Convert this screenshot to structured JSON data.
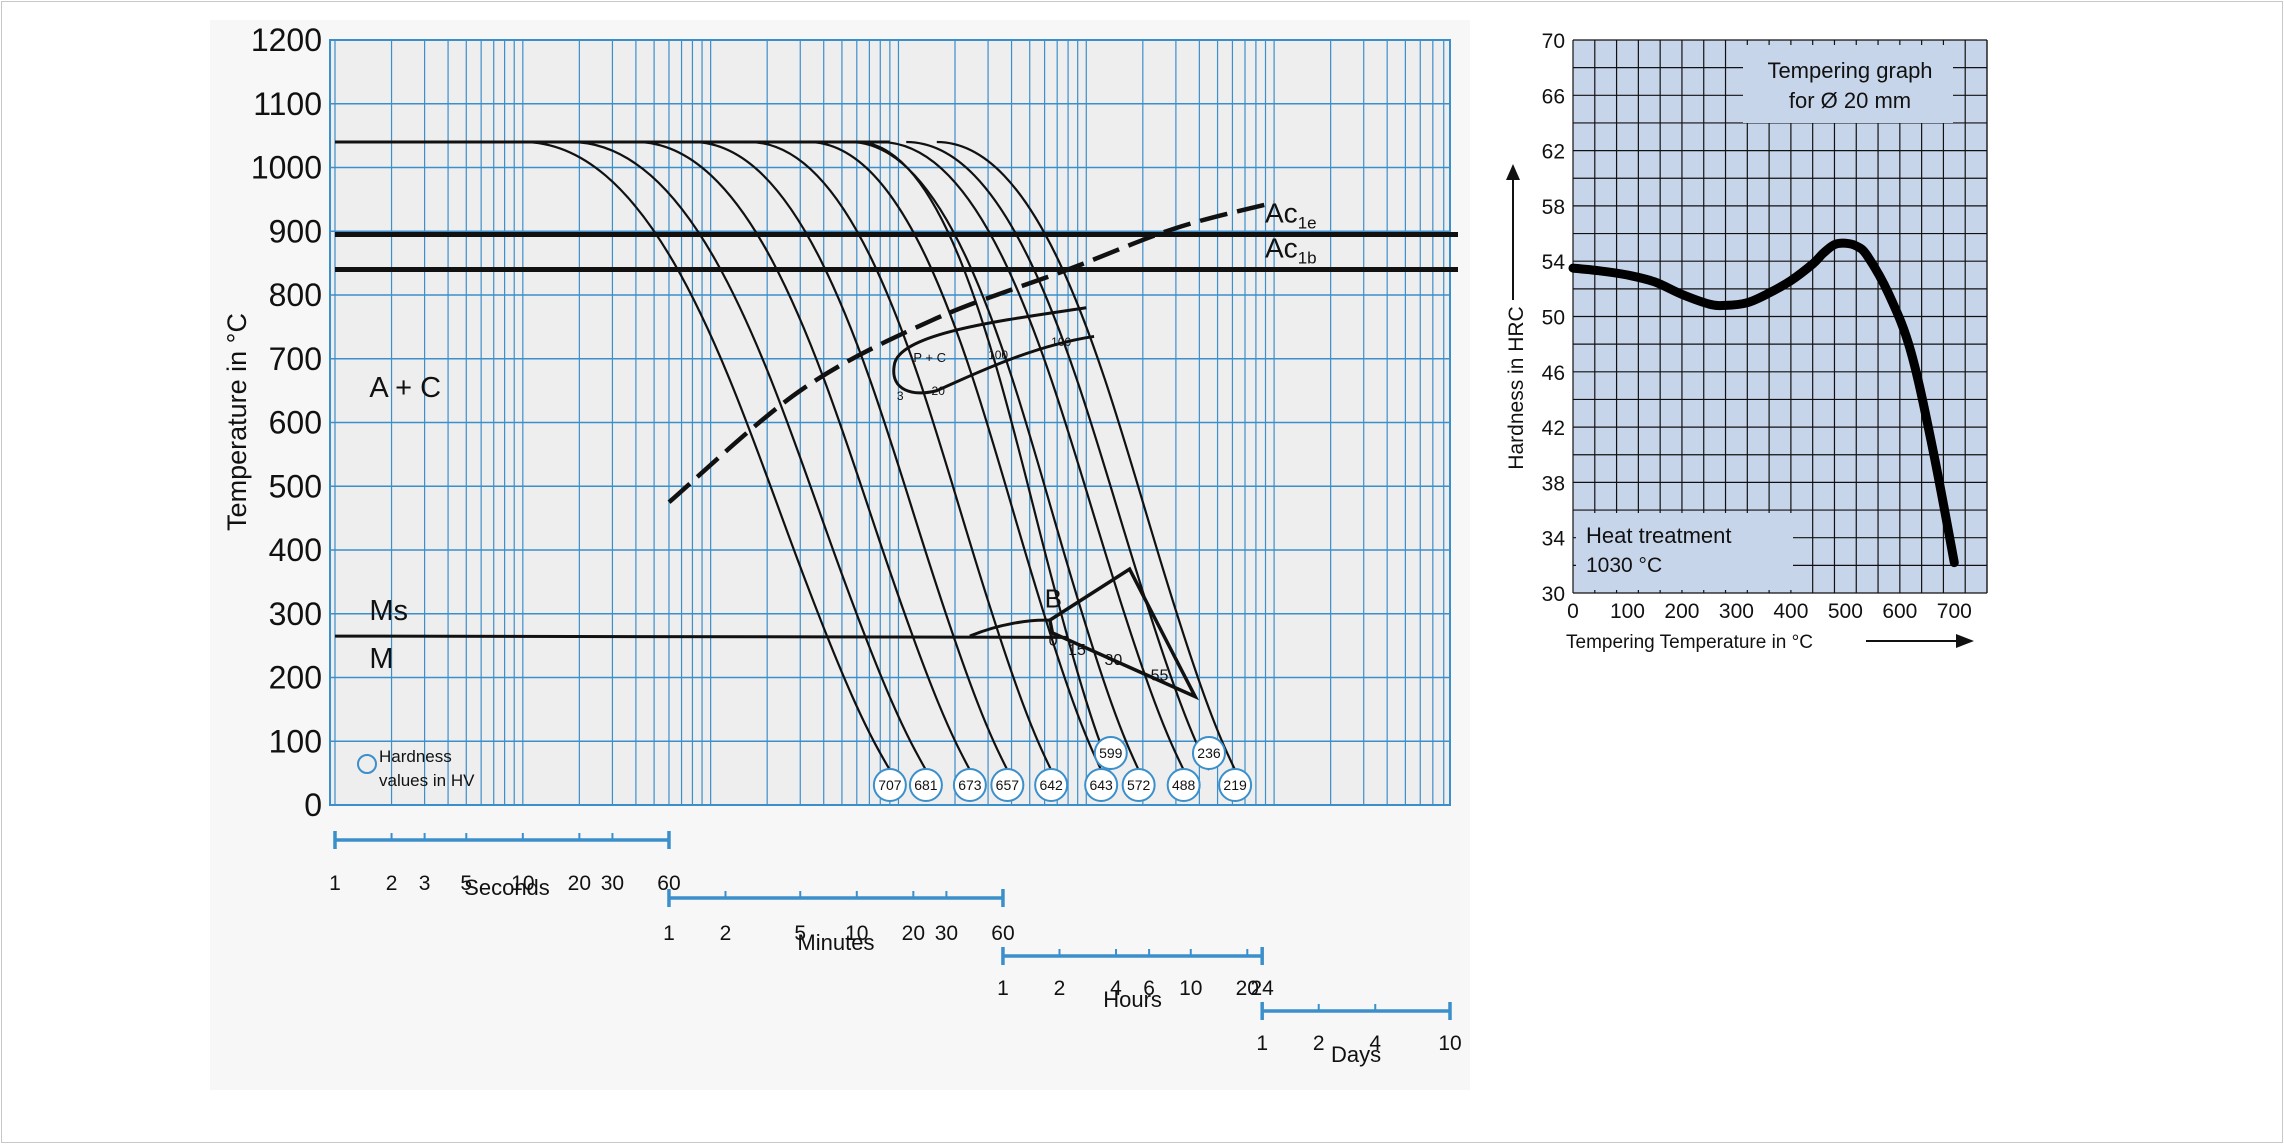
{
  "chart_data": [
    {
      "type": "line",
      "subtype": "continuous-cooling-transformation",
      "ylabel": "Temperature in °C",
      "ylim": [
        0,
        1200
      ],
      "yticks": [
        0,
        100,
        200,
        300,
        400,
        500,
        600,
        700,
        800,
        900,
        1000,
        1100,
        1200
      ],
      "x_scale": "log",
      "xlim_seconds": [
        1,
        864000
      ],
      "time_axes": [
        {
          "name": "Seconds",
          "ticks": [
            "1",
            "2",
            "3",
            "5",
            "10",
            "20",
            "30",
            "60"
          ],
          "values": [
            1,
            2,
            3,
            5,
            10,
            20,
            30,
            60
          ],
          "unit_seconds": 1
        },
        {
          "name": "Minutes",
          "ticks": [
            "1",
            "2",
            "5",
            "10",
            "20",
            "30",
            "60"
          ],
          "values": [
            1,
            2,
            5,
            10,
            20,
            30,
            60
          ],
          "unit_seconds": 60
        },
        {
          "name": "Hours",
          "ticks": [
            "1",
            "2",
            "4",
            "6",
            "10",
            "20",
            "24"
          ],
          "values": [
            1,
            2,
            4,
            6,
            10,
            20,
            24
          ],
          "unit_seconds": 3600
        },
        {
          "name": "Days",
          "ticks": [
            "1",
            "2",
            "4",
            "10"
          ],
          "values": [
            1,
            2,
            4,
            10
          ],
          "unit_seconds": 86400
        }
      ],
      "horizontal_lines": [
        {
          "label": "Ac",
          "sub": "1e",
          "y": 895
        },
        {
          "label": "Ac",
          "sub": "1b",
          "y": 840
        },
        {
          "label": "Ms",
          "y": 265
        }
      ],
      "region_labels": [
        {
          "text": "A + C",
          "t": 1.6,
          "y": 640
        },
        {
          "text": "Ms",
          "t": 1.6,
          "y": 290
        },
        {
          "text": "M",
          "t": 1.6,
          "y": 215
        },
        {
          "text": "B",
          "t": 6000,
          "y": 310
        },
        {
          "text": "P + C",
          "t": 1200,
          "y": 695
        }
      ],
      "cooling_curves": [
        {
          "hardness": "707",
          "t_start": 10,
          "t_end": 900
        },
        {
          "hardness": "681",
          "t_start": 18,
          "t_end": 1400
        },
        {
          "hardness": "673",
          "t_start": 40,
          "t_end": 2400
        },
        {
          "hardness": "657",
          "t_start": 80,
          "t_end": 3800
        },
        {
          "hardness": "642",
          "t_start": 160,
          "t_end": 6500
        },
        {
          "hardness": "643",
          "t_start": 330,
          "t_end": 12000
        },
        {
          "hardness": "572",
          "t_start": 550,
          "t_end": 19000
        },
        {
          "hardness": "599",
          "t_start": 600,
          "t_end": 13500
        },
        {
          "hardness": "488",
          "t_start": 800,
          "t_end": 33000
        },
        {
          "hardness": "236",
          "t_start": 1100,
          "t_end": 45000
        },
        {
          "hardness": "219",
          "t_start": 1600,
          "t_end": 62000
        }
      ],
      "carbide_precipitation_line": [
        [
          60,
          475
        ],
        [
          300,
          650
        ],
        [
          1500,
          760
        ],
        [
          8000,
          840
        ],
        [
          30000,
          905
        ],
        [
          100000,
          945
        ]
      ],
      "bainite_region_values": [
        "0",
        "15",
        "30",
        "55"
      ],
      "pearlite_region_values": [
        "3",
        "20",
        "100",
        "100"
      ],
      "legend": {
        "symbol": "circle",
        "text_line1": "Hardness",
        "text_line2": "values in HV",
        "placement": "bottom-left"
      },
      "austenitizing_temperature": 1040,
      "grid": true
    },
    {
      "type": "line",
      "title_line1": "Tempering graph",
      "title_line2": "for Ø 20 mm",
      "annotation_line1": "Heat treatment",
      "annotation_line2": "1030 °C",
      "xlabel": "Tempering Temperature in °C",
      "ylabel": "Hardness in HRC",
      "xlim": [
        0,
        760
      ],
      "ylim": [
        30,
        70
      ],
      "xticks": [
        0,
        100,
        200,
        300,
        400,
        500,
        600,
        700
      ],
      "yticks": [
        30,
        34,
        38,
        42,
        46,
        50,
        54,
        58,
        62,
        66,
        70
      ],
      "grid": true,
      "series": [
        {
          "x": [
            0,
            50,
            100,
            150,
            200,
            250,
            280,
            320,
            360,
            400,
            440,
            460,
            480,
            500,
            520,
            540,
            580,
            620,
            660,
            700
          ],
          "y": [
            53.5,
            53.3,
            53.0,
            52.5,
            51.6,
            50.9,
            50.8,
            51.0,
            51.7,
            52.6,
            53.8,
            54.6,
            55.2,
            55.3,
            55.1,
            54.4,
            51.6,
            47.5,
            40.5,
            32.2
          ]
        }
      ]
    }
  ]
}
